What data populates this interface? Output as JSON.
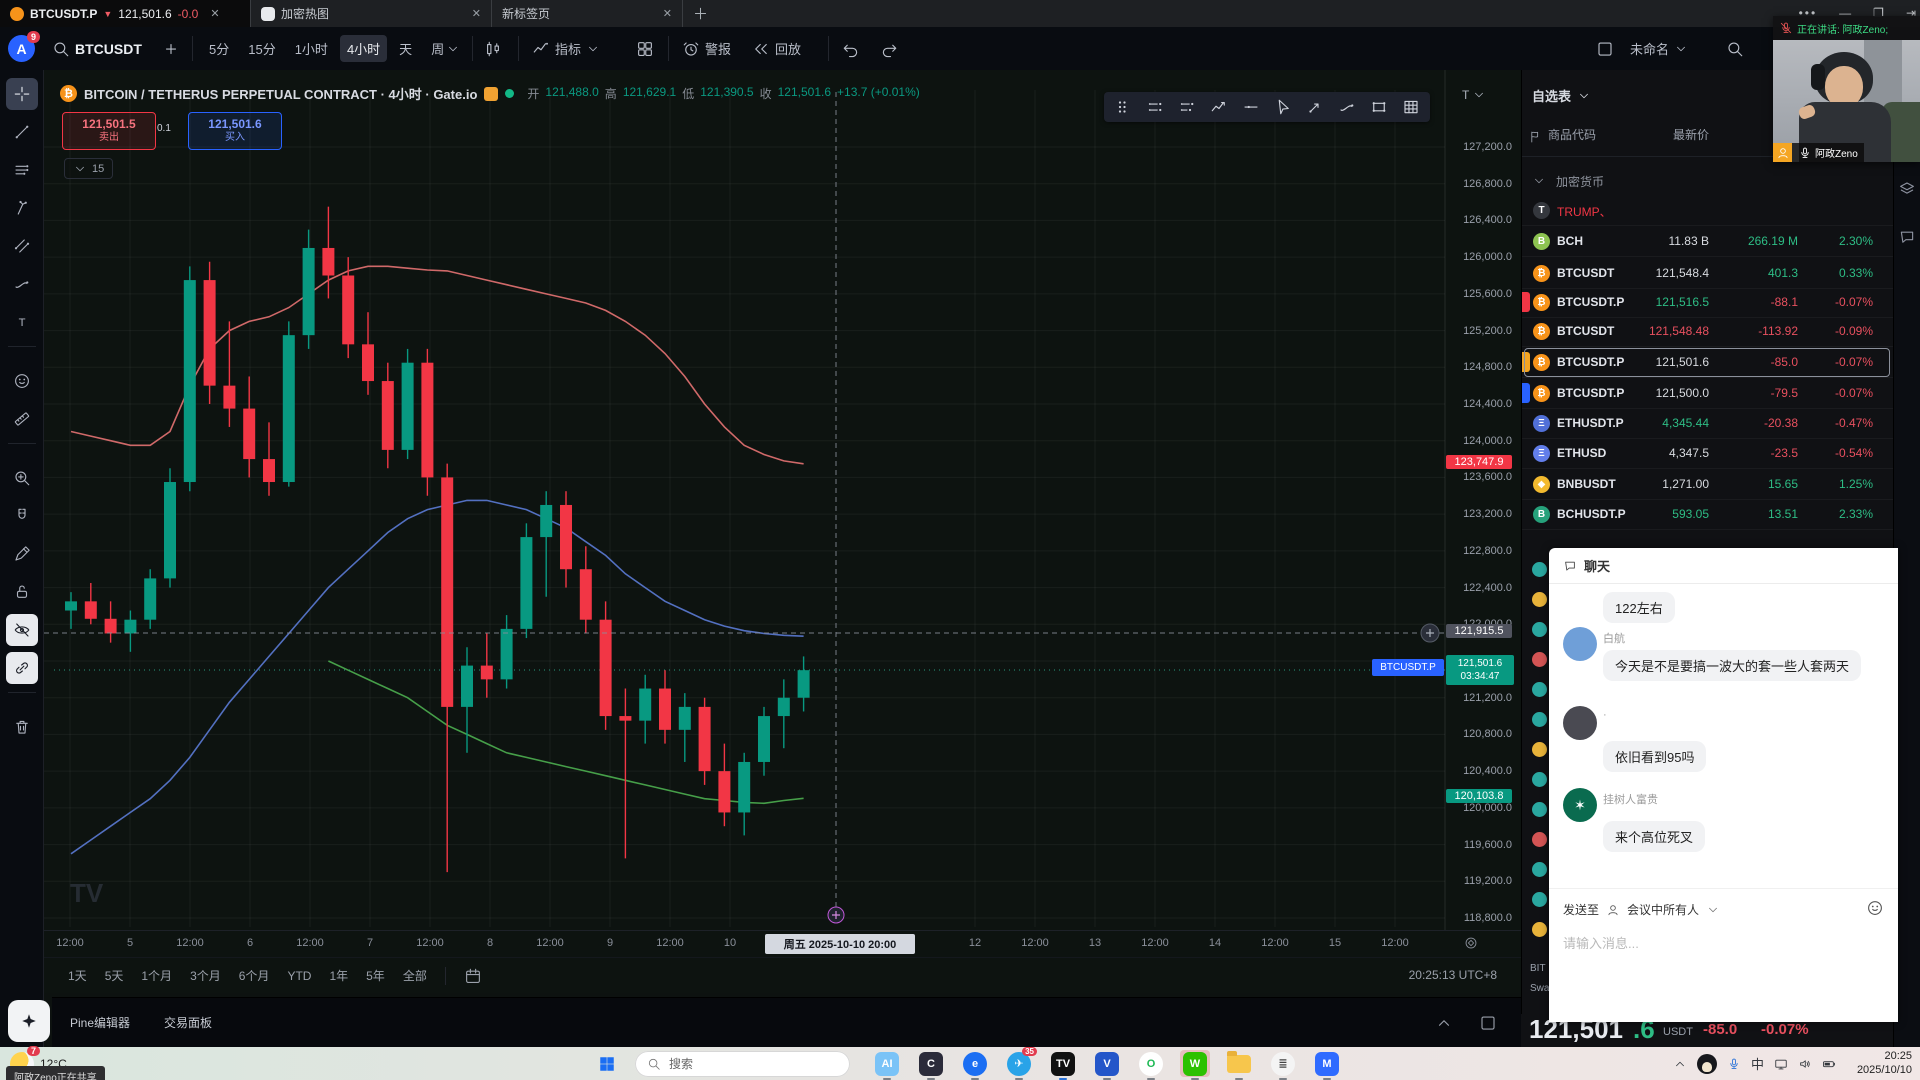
{
  "browser": {
    "tabs": [
      {
        "symbol": "BTCUSDT.P",
        "arrow": "▼",
        "price": "121,501.6",
        "change": "-0.0"
      },
      {
        "title": "加密热图"
      },
      {
        "title": "新标签页"
      }
    ]
  },
  "toolbar": {
    "avatar": "A",
    "badge": "9",
    "symbol": "BTCUSDT",
    "timeframes": [
      "5分",
      "15分",
      "1小时",
      "4小时",
      "天",
      "周"
    ],
    "active_timeframe": "4小时",
    "indicators": "指标",
    "alert": "警报",
    "replay": "回放",
    "layout_name": "未命名"
  },
  "chart": {
    "title": "BITCOIN / TETHERUS PERPETUAL CONTRACT · 4小时 · Gate.io",
    "ohlc": {
      "open_label": "开",
      "open": "121,488.0",
      "high_label": "高",
      "high": "121,629.1",
      "low_label": "低",
      "low": "121,390.5",
      "close_label": "收",
      "close": "121,501.6",
      "change": "+13.7 (+0.01%)"
    },
    "sell": {
      "price": "121,501.5",
      "label": "卖出"
    },
    "spread": "0.1",
    "buy": {
      "price": "121,501.6",
      "label": "买入"
    },
    "mini_value": "15",
    "corner_tool": "T",
    "watermark": "TV",
    "tags": {
      "band_upper": "123,747.9",
      "crosshair": "121,915.5",
      "symbol": "BTCUSDT.P",
      "last": "121,501.6",
      "countdown": "03:34:47",
      "band_lower": "120,103.8"
    },
    "crosshair_time": "周五 2025-10-10   20:00",
    "price_axis": [
      "127,200.0",
      "126,800.0",
      "126,400.0",
      "126,000.0",
      "125,600.0",
      "125,200.0",
      "124,800.0",
      "124,400.0",
      "124,000.0",
      "123,600.0",
      "123,200.0",
      "122,800.0",
      "122,400.0",
      "122,000.0",
      "121,600.0",
      "121,200.0",
      "120,800.0",
      "120,400.0",
      "120,000.0",
      "119,600.0",
      "119,200.0",
      "118,800.0"
    ],
    "time_axis": [
      {
        "label": "12:00",
        "x": 70
      },
      {
        "label": "5",
        "x": 130
      },
      {
        "label": "12:00",
        "x": 190
      },
      {
        "label": "6",
        "x": 250
      },
      {
        "label": "12:00",
        "x": 310
      },
      {
        "label": "7",
        "x": 370
      },
      {
        "label": "12:00",
        "x": 430
      },
      {
        "label": "8",
        "x": 490
      },
      {
        "label": "12:00",
        "x": 550
      },
      {
        "label": "9",
        "x": 610
      },
      {
        "label": "12:00",
        "x": 670
      },
      {
        "label": "10",
        "x": 730
      },
      {
        "label": "12",
        "x": 975
      },
      {
        "label": "12:00",
        "x": 1035
      },
      {
        "label": "13",
        "x": 1095
      },
      {
        "label": "12:00",
        "x": 1155
      },
      {
        "label": "14",
        "x": 1215
      },
      {
        "label": "12:00",
        "x": 1275
      },
      {
        "label": "15",
        "x": 1335
      },
      {
        "label": "12:00",
        "x": 1395
      }
    ],
    "ranges": [
      "1天",
      "5天",
      "1个月",
      "3个月",
      "6个月",
      "YTD",
      "1年",
      "5年",
      "全部"
    ],
    "clock": "20:25:13 UTC+8",
    "panel_tabs": [
      "Pine编辑器",
      "交易面板"
    ]
  },
  "chart_data": {
    "type": "candlestick",
    "symbol": "BTCUSDT.P",
    "exchange": "Gate.io",
    "interval": "4小时",
    "indicator": "BOLL",
    "ylim": [
      118800,
      127200
    ],
    "x_days": [
      "10-05",
      "10-06",
      "10-07",
      "10-08",
      "10-09",
      "10-10"
    ],
    "last_price": 121501.6,
    "crosshair_price": 121915.5,
    "candles": [
      [
        122150,
        122350,
        121950,
        122250
      ],
      [
        122250,
        122450,
        122000,
        122060
      ],
      [
        122060,
        122250,
        121800,
        121900
      ],
      [
        121900,
        122150,
        121700,
        122050
      ],
      [
        122050,
        122600,
        121950,
        122500
      ],
      [
        122500,
        123700,
        122400,
        123550
      ],
      [
        123550,
        125900,
        123450,
        125750
      ],
      [
        125750,
        125950,
        124400,
        124600
      ],
      [
        124600,
        125300,
        124150,
        124350
      ],
      [
        124350,
        124700,
        123600,
        123800
      ],
      [
        123800,
        124200,
        123400,
        123550
      ],
      [
        123550,
        125300,
        123500,
        125150
      ],
      [
        125150,
        126300,
        125000,
        126100
      ],
      [
        126100,
        126550,
        125550,
        125800
      ],
      [
        125800,
        126000,
        124900,
        125050
      ],
      [
        125050,
        125400,
        124500,
        124650
      ],
      [
        124650,
        124850,
        123700,
        123900
      ],
      [
        123900,
        125000,
        123800,
        124850
      ],
      [
        124850,
        125000,
        123400,
        123600
      ],
      [
        123600,
        123750,
        119300,
        121100
      ],
      [
        121100,
        121750,
        120600,
        121550
      ],
      [
        121550,
        121900,
        121200,
        121400
      ],
      [
        121400,
        122100,
        121300,
        121950
      ],
      [
        121950,
        123100,
        121850,
        122950
      ],
      [
        122950,
        123450,
        122300,
        123300
      ],
      [
        123300,
        123450,
        122400,
        122600
      ],
      [
        122600,
        122850,
        121900,
        122050
      ],
      [
        122050,
        122250,
        120850,
        121000
      ],
      [
        121000,
        121300,
        119450,
        120950
      ],
      [
        120950,
        121450,
        120700,
        121300
      ],
      [
        121300,
        121500,
        120700,
        120850
      ],
      [
        120850,
        121250,
        120500,
        121100
      ],
      [
        121100,
        121200,
        120250,
        120400
      ],
      [
        120400,
        120700,
        119800,
        119950
      ],
      [
        119950,
        120600,
        119700,
        120500
      ],
      [
        120500,
        121100,
        120350,
        121000
      ],
      [
        121000,
        121400,
        120650,
        121200
      ],
      [
        121200,
        121650,
        121050,
        121500
      ]
    ],
    "bands": {
      "upper": [
        124100,
        124050,
        124000,
        123950,
        123950,
        124100,
        124600,
        125000,
        125200,
        125300,
        125350,
        125450,
        125600,
        125750,
        125850,
        125900,
        125900,
        125880,
        125860,
        125850,
        125800,
        125750,
        125700,
        125650,
        125600,
        125550,
        125500,
        125420,
        125300,
        125150,
        124950,
        124700,
        124400,
        124150,
        123950,
        123850,
        123780,
        123748
      ],
      "middle": [
        119500,
        119650,
        119800,
        119950,
        120100,
        120300,
        120550,
        120850,
        121150,
        121400,
        121650,
        121900,
        122150,
        122400,
        122600,
        122800,
        123000,
        123150,
        123250,
        123300,
        123350,
        123350,
        123300,
        123250,
        123150,
        123050,
        122900,
        122750,
        122550,
        122400,
        122250,
        122150,
        122050,
        121980,
        121930,
        121900,
        121880,
        121870
      ],
      "lower": [
        null,
        null,
        null,
        null,
        null,
        null,
        null,
        null,
        null,
        null,
        null,
        null,
        null,
        121600,
        121500,
        121400,
        121300,
        121200,
        121050,
        120900,
        120800,
        120700,
        120600,
        120550,
        120500,
        120450,
        120400,
        120350,
        120300,
        120250,
        120200,
        120150,
        120100,
        120080,
        120060,
        120050,
        120080,
        120104
      ]
    }
  },
  "left_tools": [
    {
      "name": "crosshair-tool",
      "icon": "crosshair",
      "active": true
    },
    {
      "name": "trend-line-tool",
      "icon": "trend"
    },
    {
      "name": "horizontal-lines-tool",
      "icon": "mlines"
    },
    {
      "name": "pitchfork-tool",
      "icon": "pitchfork"
    },
    {
      "name": "parallel-channel-tool",
      "icon": "channel"
    },
    {
      "name": "brush-tool",
      "icon": "brush"
    },
    {
      "name": "text-tool",
      "icon": "text"
    },
    {
      "name": "emoji-tool",
      "icon": "smiley",
      "gap": true
    },
    {
      "name": "ruler-tool",
      "icon": "ruler"
    },
    {
      "name": "zoom-in-tool",
      "icon": "zoomin",
      "gap": true
    },
    {
      "name": "magnet-tool",
      "icon": "magnet"
    },
    {
      "name": "drawing-mode-tool",
      "icon": "pencil"
    },
    {
      "name": "lock-drawings-tool",
      "icon": "lock"
    },
    {
      "name": "hide-drawings-tool",
      "icon": "eyeoff",
      "highlight": true
    },
    {
      "name": "sync-drawings-tool",
      "icon": "link",
      "highlight": true
    },
    {
      "name": "remove-drawings-tool",
      "icon": "trash",
      "gap": true
    }
  ],
  "float_tools": [
    "dragdots",
    "raya",
    "rayb",
    "zigzag",
    "hray",
    "cursor",
    "arrowmark",
    "brush",
    "recttool",
    "gridtool"
  ],
  "watchlist": {
    "title": "自选表",
    "columns": [
      "商品代码",
      "最新价"
    ],
    "group": "加密货币",
    "rows": [
      {
        "sym": "TRUMP、",
        "type": "alert",
        "icon_text": "T",
        "icon_bg": "#34373d"
      },
      {
        "sym": "BCH",
        "icon_text": "B",
        "icon_bg": "#8dc351",
        "last": "11.83 B",
        "chg": "266.19 M",
        "pct": "2.30%",
        "dir": "up",
        "lc": "w"
      },
      {
        "sym": "BTCUSDT",
        "icon_text": "₿",
        "icon_bg": "#f7931a",
        "last": "121,548.4",
        "chg": "401.3",
        "pct": "0.33%",
        "dir": "up",
        "lc": "w"
      },
      {
        "sym": "BTCUSDT.P",
        "icon_text": "₿",
        "icon_bg": "#f7931a",
        "flag": "#f23645",
        "last": "121,516.5",
        "chg": "-88.1",
        "pct": "-0.07%",
        "dir": "down",
        "lc": "g"
      },
      {
        "sym": "BTCUSDT",
        "icon_text": "₿",
        "icon_bg": "#f7931a",
        "last": "121,548.48",
        "chg": "-113.92",
        "pct": "-0.09%",
        "dir": "down",
        "lc": "r"
      },
      {
        "sym": "BTCUSDT.P",
        "icon_text": "₿",
        "icon_bg": "#f7931a",
        "flag": "#f5a623",
        "selected": true,
        "last": "121,501.6",
        "chg": "-85.0",
        "pct": "-0.07%",
        "dir": "down",
        "lc": "w"
      },
      {
        "sym": "BTCUSDT.P",
        "icon_text": "₿",
        "icon_bg": "#f7931a",
        "flag": "#2962ff",
        "last": "121,500.0",
        "chg": "-79.5",
        "pct": "-0.07%",
        "dir": "down",
        "lc": "w"
      },
      {
        "sym": "ETHUSDT.P",
        "icon_text": "Ξ",
        "icon_bg": "#5170d8",
        "last": "4,345.44",
        "chg": "-20.38",
        "pct": "-0.47%",
        "dir": "down",
        "lc": "g"
      },
      {
        "sym": "ETHUSD",
        "icon_text": "Ξ",
        "icon_bg": "#627eea",
        "last": "4,347.5",
        "chg": "-23.5",
        "pct": "-0.54%",
        "dir": "down",
        "lc": "w"
      },
      {
        "sym": "BNBUSDT",
        "icon_text": "◆",
        "icon_bg": "#f3ba2f",
        "last": "1,271.00",
        "chg": "15.65",
        "pct": "1.25%",
        "dir": "up",
        "lc": "w"
      },
      {
        "sym": "BCHUSDT.P",
        "icon_text": "B",
        "icon_bg": "#26a17b",
        "last": "593.05",
        "chg": "13.51",
        "pct": "2.33%",
        "dir": "up",
        "lc": "g"
      }
    ]
  },
  "strip": {
    "texts": [
      "BIT",
      "Swa"
    ]
  },
  "webcam": {
    "speaking": "正在讲话: 阿政Zeno;",
    "name": "阿政Zeno"
  },
  "chat": {
    "title": "聊天",
    "messages": [
      {
        "text": "122左右"
      },
      {
        "name": "白航",
        "text": "今天是不是要搞一波大的套一些人套两天",
        "avatar_bg": "#6f9fd8"
      },
      {
        "name": "·",
        "text": "依旧看到95吗",
        "avatar_bg": "#4a4a52"
      },
      {
        "name": "挂树人富贵",
        "text": "来个高位死叉",
        "avatar_bg": "#0a6b4f",
        "avatar_star": true
      }
    ],
    "send_to_label": "发送至",
    "send_to": "会议中所有人",
    "placeholder": "请输入消息..."
  },
  "ticker": {
    "price": "121,501",
    "decimal": ".6",
    "unit": "USDT",
    "change": "-85.0",
    "percent": "-0.07%"
  },
  "taskbar": {
    "weather": "12°C",
    "weather_badge": "7",
    "share_tooltip": "阿政Zeno正在共享",
    "search_placeholder": "搜索",
    "ime": "中",
    "telegram_badge": "35",
    "time": "20:25",
    "date": "2025/10/10",
    "apps": [
      {
        "name": "ai-browser-icon",
        "bg": "#7ac3f7",
        "label": "AI"
      },
      {
        "name": "cat-app-icon",
        "bg": "#2b2b3a",
        "label": "C"
      },
      {
        "name": "edge-icon",
        "bg": "#1b6ef3",
        "label": "e",
        "round": true
      },
      {
        "name": "telegram-icon",
        "bg": "#29a3e8",
        "label": "✈",
        "badge": "35",
        "round": true
      },
      {
        "name": "tradingview-icon",
        "bg": "#111",
        "label": "TV",
        "active": true
      },
      {
        "name": "v-app-icon",
        "bg": "#2456c9",
        "label": "V"
      },
      {
        "name": "green-ring-icon",
        "bg": "#ffffff",
        "label": "O",
        "fg": "#1db954",
        "round": true
      },
      {
        "name": "wechat-icon",
        "bg": "#2dc100",
        "label": "W",
        "highlight": true
      },
      {
        "name": "explorer-icon",
        "folder": true
      },
      {
        "name": "white-app-icon",
        "bg": "#f4f4f4",
        "label": "≣",
        "fg": "#444",
        "round": true
      },
      {
        "name": "m-app-icon",
        "bg": "#2f6bff",
        "label": "M"
      }
    ]
  },
  "colors": {
    "up": "#089981",
    "down": "#f23645",
    "band_upper": "#e57373",
    "band_mid": "#5b7bd5",
    "band_lower": "#4caf50",
    "wl_up": "#2ebd85",
    "wl_down": "#e8505f",
    "accent": "#2962ff"
  }
}
